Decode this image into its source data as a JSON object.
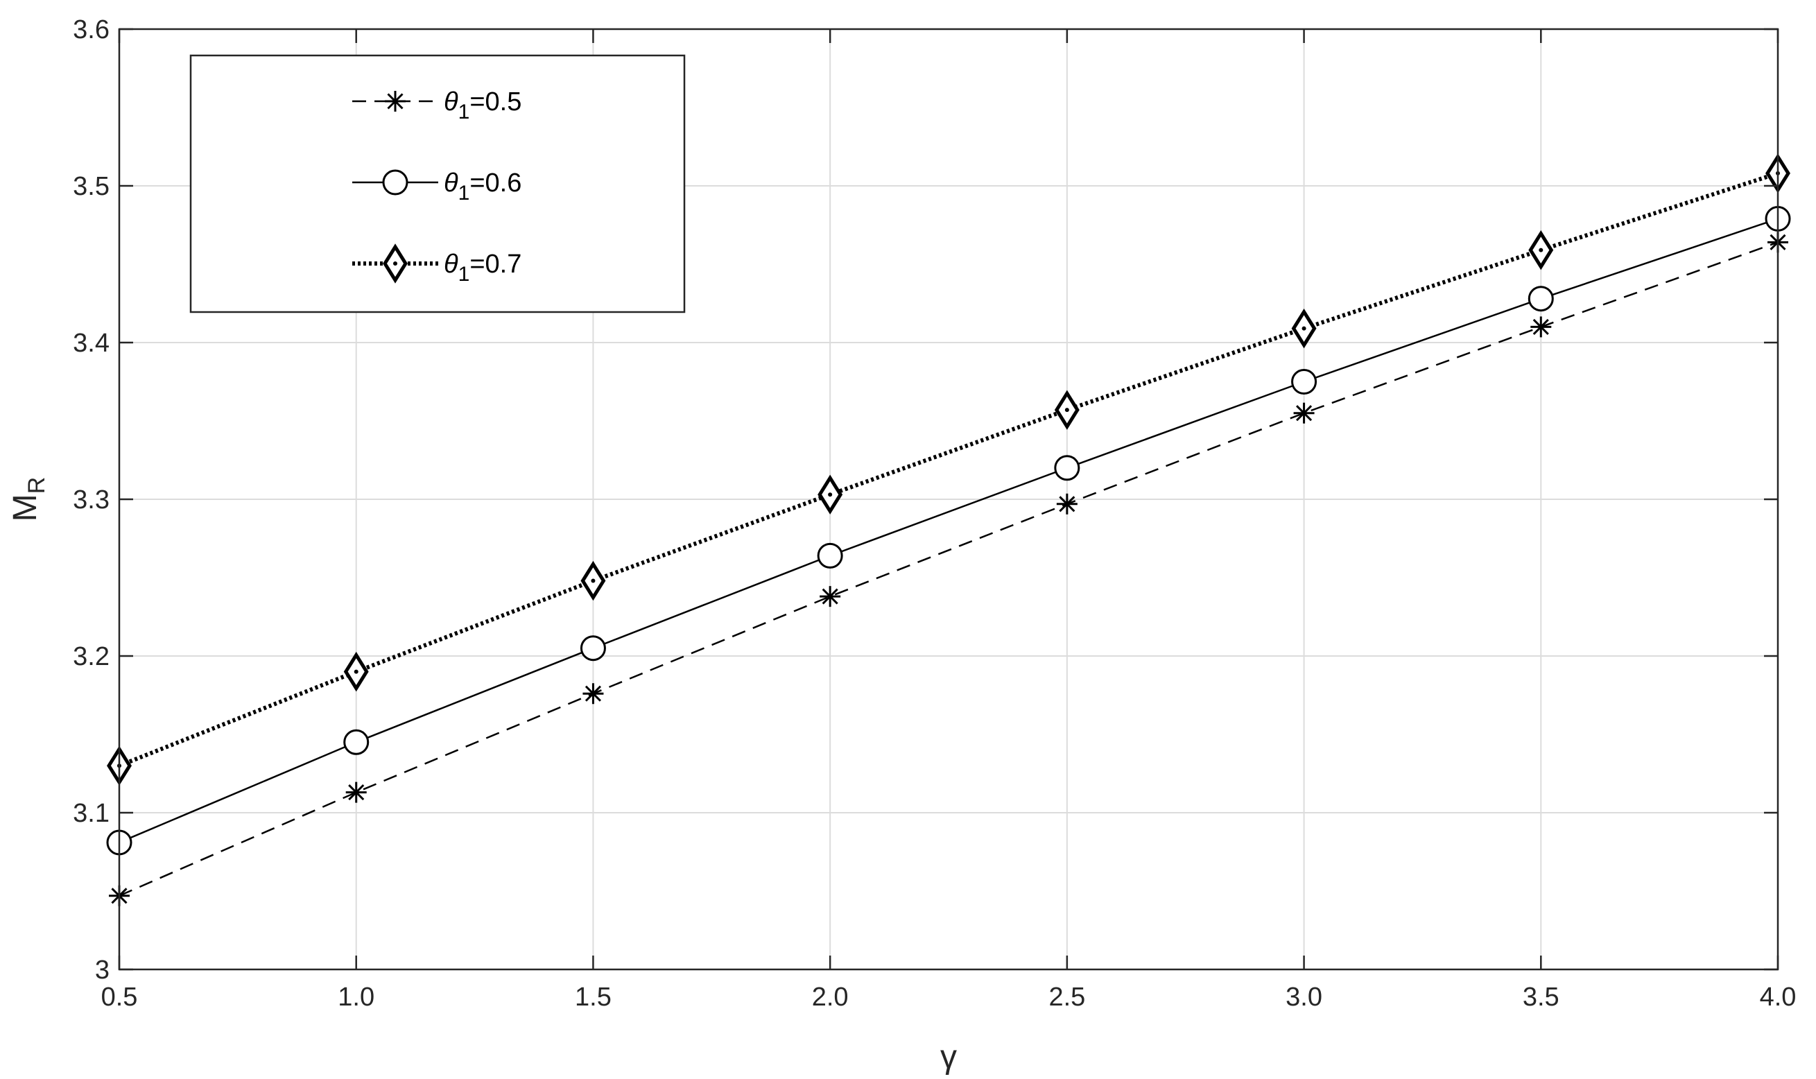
{
  "chart_data": {
    "type": "line",
    "xlabel": "γ",
    "ylabel": {
      "main": "M",
      "sub": "R"
    },
    "xlim": [
      0.5,
      4.0
    ],
    "ylim": [
      3.0,
      3.6
    ],
    "xticks": [
      "0.5",
      "1.0",
      "1.5",
      "2.0",
      "2.5",
      "3.0",
      "3.5",
      "4.0"
    ],
    "xtick_values": [
      0.5,
      1.0,
      1.5,
      2.0,
      2.5,
      3.0,
      3.5,
      4.0
    ],
    "yticks": [
      "3",
      "3.1",
      "3.2",
      "3.3",
      "3.4",
      "3.5",
      "3.6"
    ],
    "ytick_values": [
      3.0,
      3.1,
      3.2,
      3.3,
      3.4,
      3.5,
      3.6
    ],
    "grid": true,
    "legend_position": "top-left",
    "x": [
      0.5,
      1.0,
      1.5,
      2.0,
      2.5,
      3.0,
      3.5,
      4.0
    ],
    "series": [
      {
        "name": "θ",
        "name_sub": "1",
        "name_suffix": "=0.5",
        "line_style": "dashed",
        "marker": "asterisk",
        "color": "#000000",
        "values": [
          3.047,
          3.113,
          3.176,
          3.238,
          3.297,
          3.355,
          3.41,
          3.464
        ]
      },
      {
        "name": "θ",
        "name_sub": "1",
        "name_suffix": "=0.6",
        "line_style": "solid",
        "marker": "circle",
        "color": "#000000",
        "values": [
          3.081,
          3.145,
          3.205,
          3.264,
          3.32,
          3.375,
          3.428,
          3.479
        ]
      },
      {
        "name": "θ",
        "name_sub": "1",
        "name_suffix": "=0.7",
        "line_style": "dotted",
        "marker": "diamond",
        "color": "#000000",
        "values": [
          3.13,
          3.19,
          3.248,
          3.303,
          3.357,
          3.409,
          3.459,
          3.508
        ]
      }
    ]
  }
}
